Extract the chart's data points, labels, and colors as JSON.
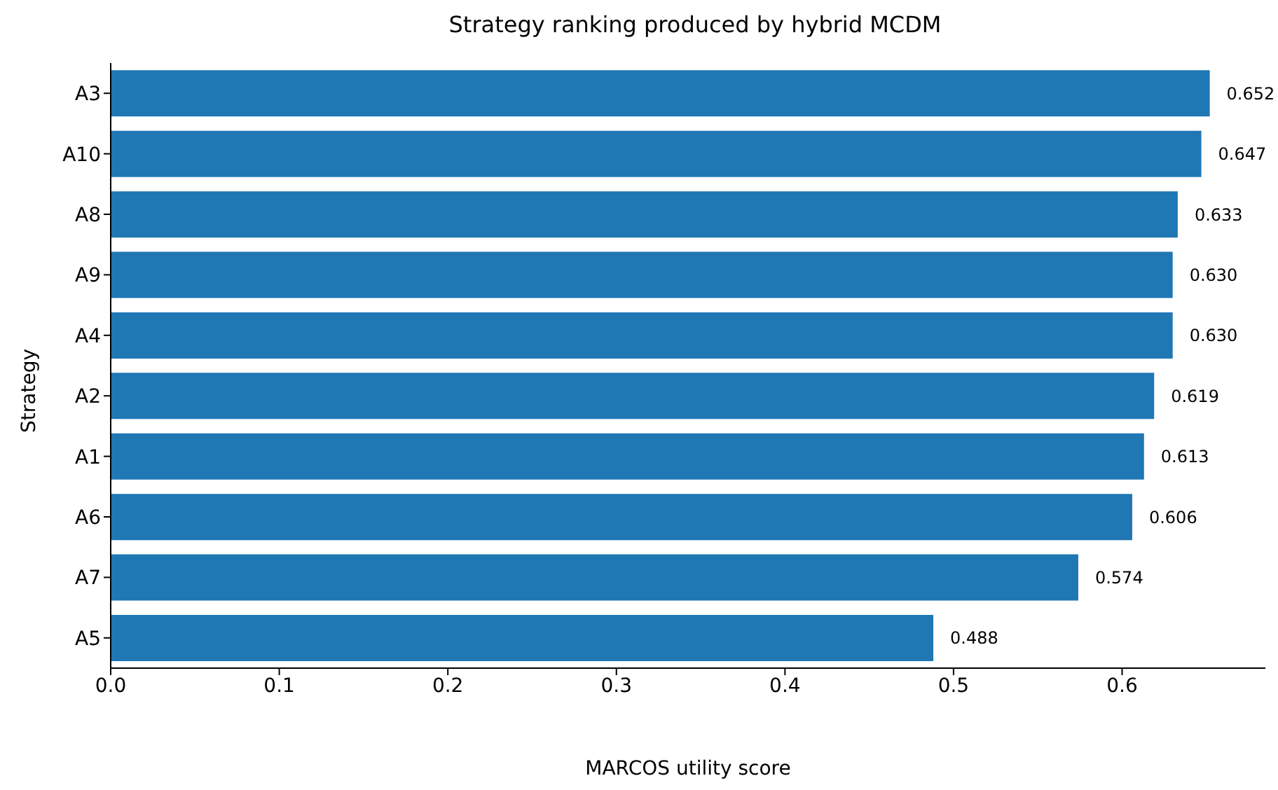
{
  "chart_data": {
    "type": "bar",
    "orientation": "horizontal",
    "title": "Strategy ranking produced by hybrid MCDM",
    "xlabel": "MARCOS utility score",
    "ylabel": "Strategy",
    "categories": [
      "A3",
      "A10",
      "A8",
      "A9",
      "A4",
      "A2",
      "A1",
      "A6",
      "A7",
      "A5"
    ],
    "values": [
      0.652,
      0.647,
      0.633,
      0.63,
      0.63,
      0.619,
      0.613,
      0.606,
      0.574,
      0.488
    ],
    "value_labels": [
      "0.652",
      "0.647",
      "0.633",
      "0.630",
      "0.630",
      "0.619",
      "0.613",
      "0.606",
      "0.574",
      "0.488"
    ],
    "color": "#1f77b4",
    "xlim": [
      0,
      0.685
    ],
    "xticks": [
      {
        "value": 0,
        "label": "0.0"
      },
      0.1,
      0.2,
      0.3,
      0.4,
      0.5,
      0.6
    ],
    "grid": false,
    "legend": false
  }
}
